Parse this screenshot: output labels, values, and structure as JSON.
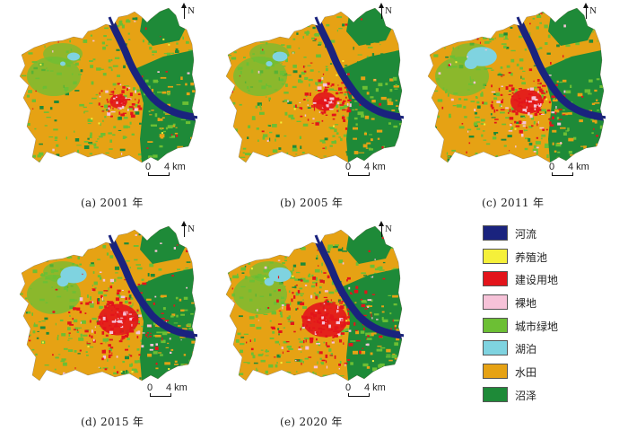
{
  "panels": [
    {
      "caption": "(a) 2001 年",
      "urban": 0.55,
      "lake": 0.5
    },
    {
      "caption": "(b) 2005 年",
      "urban": 0.75,
      "lake": 0.6
    },
    {
      "caption": "(c) 2011 年",
      "urban": 1.0,
      "lake": 1.2
    },
    {
      "caption": "(d) 2015 年",
      "urban": 1.25,
      "lake": 1.05
    },
    {
      "caption": "(e) 2020 年",
      "urban": 1.4,
      "lake": 0.9
    }
  ],
  "north_label": "N",
  "scale": {
    "zero": "0",
    "end": "4 km"
  },
  "legend": [
    {
      "label": "河流",
      "color": "#1a237e"
    },
    {
      "label": "养殖池",
      "color": "#f5f03a"
    },
    {
      "label": "建设用地",
      "color": "#e3141b"
    },
    {
      "label": "裸地",
      "color": "#f6c2d8"
    },
    {
      "label": "城市绿地",
      "color": "#6cbf34"
    },
    {
      "label": "湖泊",
      "color": "#7fd3e0"
    },
    {
      "label": "水田",
      "color": "#e6a214"
    },
    {
      "label": "沼泽",
      "color": "#1e8a38"
    }
  ]
}
